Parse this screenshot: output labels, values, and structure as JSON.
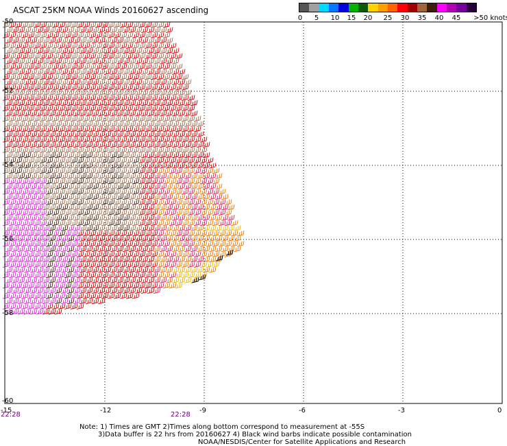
{
  "title": "ASCAT 25KM NOAA Winds 20160627 ascending",
  "colorbar": {
    "colors": [
      "#555555",
      "#a0a0a0",
      "#00d8ff",
      "#0078ff",
      "#0000e0",
      "#00b400",
      "#0a5a0a",
      "#ffd200",
      "#ffa000",
      "#ff6400",
      "#ff0000",
      "#a00000",
      "#a0643c",
      "#3c1e0a",
      "#ff00ff",
      "#b400b4",
      "#7800a0",
      "#28003c"
    ],
    "labels": [
      "0",
      "5",
      "10",
      "15",
      "20",
      "25",
      "30",
      "35",
      "40",
      "45",
      ">50 knots"
    ]
  },
  "axes": {
    "lon_labels": [
      "-15",
      "-12",
      "-9",
      "-6",
      "-3",
      "0"
    ],
    "lat_labels": [
      "-50",
      "-52",
      "-54",
      "-56",
      "-58",
      "-60"
    ]
  },
  "time_labels": [
    "22:28",
    "22:28"
  ],
  "note": {
    "line1": "Note: 1) Times are GMT 2)Times along bottom correspond to measurement at -55S",
    "line2": "3)Data buffer is 22 hrs from 20160627 4) Black wind barbs indicate possible contamination",
    "line3": "NOAA/NESDIS/Center for Satellite Applications and Research"
  },
  "barb_colors": {
    "dark_red": "#b40000",
    "red": "#e60000",
    "brown": "#9c6a4a",
    "dark_brown": "#3c1e0a",
    "magenta": "#e020e0",
    "pink": "#e0205a",
    "orange": "#f07800",
    "yellow": "#f0b400",
    "black": "#000000"
  }
}
